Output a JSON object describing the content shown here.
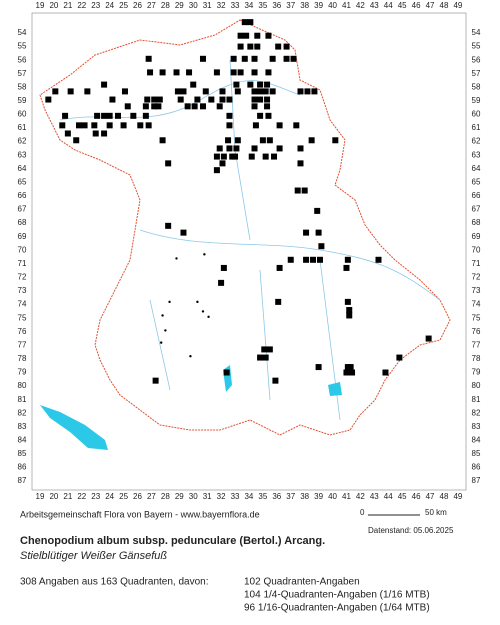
{
  "map": {
    "x_labels": [
      19,
      20,
      21,
      22,
      23,
      24,
      25,
      26,
      27,
      28,
      29,
      30,
      31,
      32,
      33,
      34,
      35,
      36,
      37,
      38,
      39,
      40,
      41,
      42,
      43,
      44,
      45,
      46,
      47,
      48,
      49
    ],
    "y_labels": [
      54,
      55,
      56,
      57,
      58,
      59,
      60,
      61,
      62,
      63,
      64,
      65,
      66,
      67,
      68,
      69,
      70,
      71,
      72,
      73,
      74,
      75,
      76,
      77,
      78,
      79,
      80,
      81,
      82,
      83,
      84,
      85,
      86,
      87
    ],
    "records": [
      [
        33.7,
        53.2
      ],
      [
        34.1,
        53.2
      ],
      [
        33.4,
        54.2
      ],
      [
        33.8,
        54.2
      ],
      [
        34.6,
        54.2
      ],
      [
        35.4,
        54.2
      ],
      [
        33.4,
        55.0
      ],
      [
        34.1,
        55.0
      ],
      [
        34.6,
        55.0
      ],
      [
        36.1,
        55.0
      ],
      [
        36.7,
        55.0
      ],
      [
        26.8,
        55.9
      ],
      [
        30.7,
        55.9
      ],
      [
        32.9,
        55.9
      ],
      [
        33.7,
        55.9
      ],
      [
        34.4,
        55.9
      ],
      [
        35.7,
        55.9
      ],
      [
        36.7,
        55.9
      ],
      [
        37.2,
        55.9
      ],
      [
        26.9,
        56.9
      ],
      [
        27.8,
        56.9
      ],
      [
        28.8,
        56.9
      ],
      [
        29.7,
        56.9
      ],
      [
        31.7,
        56.9
      ],
      [
        32.9,
        56.9
      ],
      [
        33.4,
        56.9
      ],
      [
        34.4,
        56.9
      ],
      [
        35.4,
        56.9
      ],
      [
        23.6,
        57.8
      ],
      [
        30.0,
        57.8
      ],
      [
        33.1,
        57.8
      ],
      [
        34.1,
        57.8
      ],
      [
        34.8,
        57.8
      ],
      [
        35.3,
        57.8
      ],
      [
        20.1,
        58.3
      ],
      [
        21.2,
        58.3
      ],
      [
        22.4,
        58.3
      ],
      [
        25.1,
        58.3
      ],
      [
        28.9,
        58.3
      ],
      [
        29.3,
        58.3
      ],
      [
        30.9,
        58.3
      ],
      [
        32.1,
        58.3
      ],
      [
        33.2,
        58.3
      ],
      [
        34.4,
        58.3
      ],
      [
        34.8,
        58.3
      ],
      [
        35.2,
        58.3
      ],
      [
        35.7,
        58.3
      ],
      [
        37.7,
        58.3
      ],
      [
        38.2,
        58.3
      ],
      [
        38.7,
        58.3
      ],
      [
        19.6,
        58.9
      ],
      [
        24.2,
        58.9
      ],
      [
        26.7,
        58.9
      ],
      [
        27.2,
        58.9
      ],
      [
        27.6,
        58.9
      ],
      [
        29.1,
        58.9
      ],
      [
        30.3,
        58.9
      ],
      [
        31.3,
        58.9
      ],
      [
        32.1,
        58.9
      ],
      [
        32.6,
        58.9
      ],
      [
        34.4,
        58.9
      ],
      [
        34.8,
        58.9
      ],
      [
        35.3,
        58.9
      ],
      [
        25.3,
        59.4
      ],
      [
        26.6,
        59.4
      ],
      [
        27.2,
        59.4
      ],
      [
        27.5,
        59.4
      ],
      [
        29.6,
        59.4
      ],
      [
        30.1,
        59.4
      ],
      [
        30.7,
        59.4
      ],
      [
        31.9,
        59.4
      ],
      [
        34.4,
        59.4
      ],
      [
        35.3,
        59.4
      ],
      [
        20.8,
        60.1
      ],
      [
        23.1,
        60.1
      ],
      [
        23.6,
        60.1
      ],
      [
        24.0,
        60.1
      ],
      [
        24.6,
        60.1
      ],
      [
        25.7,
        60.1
      ],
      [
        26.6,
        60.1
      ],
      [
        32.6,
        60.1
      ],
      [
        34.8,
        60.1
      ],
      [
        35.4,
        60.1
      ],
      [
        20.6,
        60.8
      ],
      [
        21.8,
        60.8
      ],
      [
        22.2,
        60.8
      ],
      [
        22.9,
        60.8
      ],
      [
        24.0,
        60.8
      ],
      [
        25.0,
        60.8
      ],
      [
        26.2,
        60.8
      ],
      [
        26.8,
        60.8
      ],
      [
        32.6,
        60.8
      ],
      [
        34.5,
        60.8
      ],
      [
        36.2,
        60.8
      ],
      [
        37.4,
        60.8
      ],
      [
        21.0,
        61.4
      ],
      [
        23.0,
        61.4
      ],
      [
        23.6,
        61.4
      ],
      [
        21.6,
        61.9
      ],
      [
        27.8,
        61.9
      ],
      [
        32.5,
        61.9
      ],
      [
        33.2,
        61.9
      ],
      [
        35.0,
        61.9
      ],
      [
        35.5,
        61.9
      ],
      [
        38.5,
        61.9
      ],
      [
        40.2,
        61.9
      ],
      [
        31.9,
        62.5
      ],
      [
        32.6,
        62.5
      ],
      [
        33.1,
        62.5
      ],
      [
        34.4,
        62.5
      ],
      [
        36.2,
        62.5
      ],
      [
        37.7,
        62.5
      ],
      [
        31.7,
        63.1
      ],
      [
        32.2,
        63.1
      ],
      [
        32.8,
        63.1
      ],
      [
        33.0,
        63.1
      ],
      [
        34.2,
        63.1
      ],
      [
        35.2,
        63.1
      ],
      [
        35.8,
        63.1
      ],
      [
        28.2,
        63.6
      ],
      [
        32.1,
        63.6
      ],
      [
        37.7,
        63.6
      ],
      [
        31.7,
        64.1
      ],
      [
        37.5,
        65.6
      ],
      [
        38.0,
        65.6
      ],
      [
        38.9,
        67.1
      ],
      [
        28.2,
        68.2
      ],
      [
        29.3,
        68.7
      ],
      [
        38.1,
        68.7
      ],
      [
        39.0,
        68.7
      ],
      [
        39.2,
        69.7
      ],
      [
        37.0,
        70.7
      ],
      [
        38.1,
        70.7
      ],
      [
        38.6,
        70.7
      ],
      [
        39.1,
        70.7
      ],
      [
        41.1,
        70.7
      ],
      [
        43.3,
        70.7
      ],
      [
        36.2,
        71.3
      ],
      [
        32.2,
        71.3
      ],
      [
        41.0,
        71.3
      ],
      [
        32.0,
        72.4
      ],
      [
        36.1,
        73.8
      ],
      [
        41.1,
        73.8
      ],
      [
        41.2,
        74.4
      ],
      [
        41.2,
        74.8
      ],
      [
        46.9,
        76.5
      ],
      [
        35.1,
        77.3
      ],
      [
        35.5,
        77.3
      ],
      [
        34.8,
        77.9
      ],
      [
        35.2,
        77.9
      ],
      [
        44.8,
        77.9
      ],
      [
        39.0,
        78.6
      ],
      [
        41.1,
        78.6
      ],
      [
        41.3,
        78.6
      ],
      [
        32.4,
        79.0
      ],
      [
        41.0,
        79.0
      ],
      [
        41.4,
        79.0
      ],
      [
        43.8,
        79.0
      ],
      [
        27.3,
        79.6
      ],
      [
        35.9,
        79.6
      ]
    ],
    "dots": [
      [
        28.8,
        70.6
      ],
      [
        30.8,
        70.3
      ],
      [
        28.3,
        73.8
      ],
      [
        27.8,
        74.8
      ],
      [
        28.0,
        75.9
      ],
      [
        27.7,
        76.8
      ],
      [
        30.3,
        73.8
      ],
      [
        30.7,
        74.5
      ],
      [
        31.1,
        74.9
      ],
      [
        29.8,
        77.8
      ]
    ]
  },
  "footer": {
    "credit": "Arbeitsgemeinschaft Flora von Bayern - www.bayernflora.de",
    "scale_start": "0",
    "scale_end": "50 km",
    "date": "Datenstand: 05.06.2025",
    "title": "Chenopodium album subsp. pedunculare (Bertol.) Arcang.",
    "subtitle": "Stielblütiger Weißer Gänsefuß",
    "summary": "308 Angaben aus 163 Quadranten, davon:",
    "stats": [
      "102 Quadranten-Angaben",
      "104 1/4-Quadranten-Angaben (1/16 MTB)",
      "96 1/16-Quadranten-Angaben (1/64 MTB)"
    ]
  }
}
